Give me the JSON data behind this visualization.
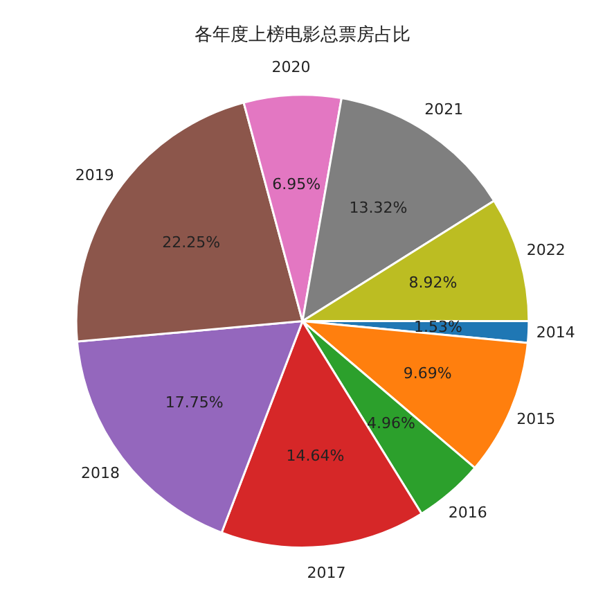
{
  "chart_data": {
    "type": "pie",
    "title": "各年度上榜电影总票房占比",
    "categories": [
      "2014",
      "2015",
      "2016",
      "2017",
      "2018",
      "2019",
      "2020",
      "2021",
      "2022"
    ],
    "values": [
      1.53,
      9.69,
      4.96,
      14.64,
      17.75,
      22.25,
      6.95,
      13.32,
      8.92
    ],
    "value_labels": [
      "1.53%",
      "9.69%",
      "4.96%",
      "14.64%",
      "17.75%",
      "22.25%",
      "6.95%",
      "13.32%",
      "8.92%"
    ],
    "colors": [
      "#1f77b4",
      "#ff7f0e",
      "#2ca02c",
      "#d62728",
      "#9467bd",
      "#8c564b",
      "#e377c2",
      "#7f7f7f",
      "#bcbd22"
    ]
  }
}
